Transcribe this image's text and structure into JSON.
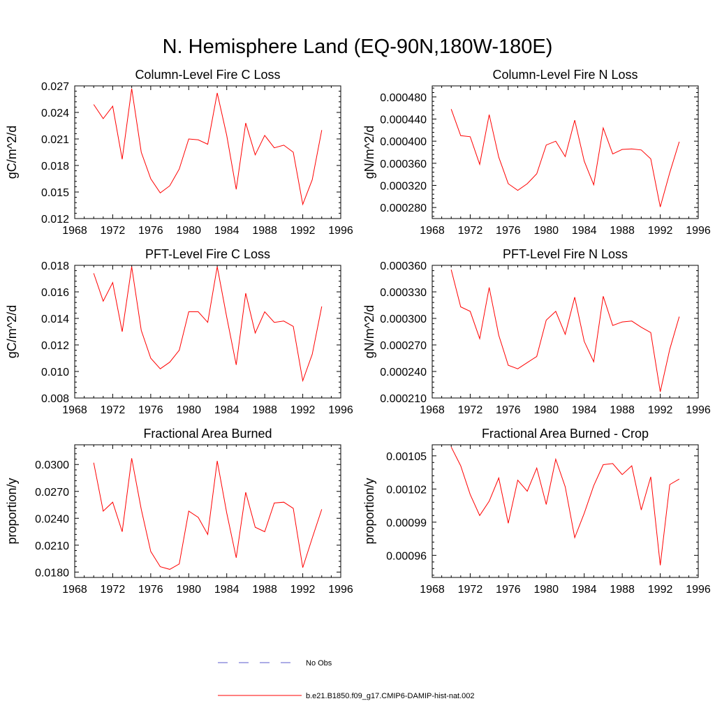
{
  "figure_title": "N. Hemisphere Land (EQ-90N,180W-180E)",
  "legend": {
    "obs_label": "No Obs",
    "obs_color": "#5a5acd",
    "model_label": "b.e21.B1850.f09_g17.CMIP6-DAMIP-hist-nat.002",
    "model_color": "#ff0000"
  },
  "chart_data": [
    {
      "type": "line",
      "title": "Column-Level Fire C Loss",
      "ylabel": "gC/m^2/d",
      "xlim": [
        1968,
        1996
      ],
      "ylim": [
        0.012,
        0.027
      ],
      "xticks": [
        1968,
        1972,
        1976,
        1980,
        1984,
        1988,
        1992,
        1996
      ],
      "yticks": [
        "0.012",
        "0.015",
        "0.018",
        "0.021",
        "0.024",
        "0.027"
      ],
      "series": [
        {
          "x": [
            1970,
            1971,
            1972,
            1973,
            1974,
            1975,
            1976,
            1977,
            1978,
            1979,
            1980,
            1981,
            1982,
            1983,
            1984,
            1985,
            1986,
            1987,
            1988,
            1989,
            1990,
            1991,
            1992,
            1993,
            1994
          ],
          "values": [
            0.0249,
            0.0233,
            0.0247,
            0.0187,
            0.0267,
            0.0195,
            0.0165,
            0.0149,
            0.0157,
            0.0176,
            0.021,
            0.0209,
            0.0204,
            0.0262,
            0.0214,
            0.0153,
            0.0228,
            0.0192,
            0.0214,
            0.02,
            0.0203,
            0.0195,
            0.0136,
            0.0164,
            0.022
          ],
          "color": "#ff0000"
        }
      ]
    },
    {
      "type": "line",
      "title": "Column-Level Fire N Loss",
      "ylabel": "gN/m^2/d",
      "xlim": [
        1968,
        1996
      ],
      "ylim": [
        0.00026,
        0.0005
      ],
      "xticks": [
        1968,
        1972,
        1976,
        1980,
        1984,
        1988,
        1992,
        1996
      ],
      "yticks": [
        "0.000280",
        "0.000320",
        "0.000360",
        "0.000400",
        "0.000440",
        "0.000480"
      ],
      "series": [
        {
          "x": [
            1970,
            1971,
            1972,
            1973,
            1974,
            1975,
            1976,
            1977,
            1978,
            1979,
            1980,
            1981,
            1982,
            1983,
            1984,
            1985,
            1986,
            1987,
            1988,
            1989,
            1990,
            1991,
            1992,
            1993,
            1994
          ],
          "values": [
            0.000458,
            0.00041,
            0.000408,
            0.000358,
            0.000448,
            0.000371,
            0.000323,
            0.000311,
            0.000323,
            0.000341,
            0.000393,
            0.0004,
            0.000372,
            0.000438,
            0.000364,
            0.000321,
            0.000424,
            0.000377,
            0.000385,
            0.000386,
            0.000384,
            0.000368,
            0.000281,
            0.000343,
            0.000399
          ],
          "color": "#ff0000"
        }
      ]
    },
    {
      "type": "line",
      "title": "PFT-Level Fire C Loss",
      "ylabel": "gC/m^2/d",
      "xlim": [
        1968,
        1996
      ],
      "ylim": [
        0.008,
        0.018
      ],
      "xticks": [
        1968,
        1972,
        1976,
        1980,
        1984,
        1988,
        1992,
        1996
      ],
      "yticks": [
        "0.008",
        "0.010",
        "0.012",
        "0.014",
        "0.016",
        "0.018"
      ],
      "series": [
        {
          "x": [
            1970,
            1971,
            1972,
            1973,
            1974,
            1975,
            1976,
            1977,
            1978,
            1979,
            1980,
            1981,
            1982,
            1983,
            1984,
            1985,
            1986,
            1987,
            1988,
            1989,
            1990,
            1991,
            1992,
            1993,
            1994
          ],
          "values": [
            0.0174,
            0.0153,
            0.0167,
            0.013,
            0.0179,
            0.0131,
            0.011,
            0.0102,
            0.0107,
            0.0116,
            0.0145,
            0.0145,
            0.0137,
            0.0179,
            0.0141,
            0.0105,
            0.0159,
            0.0129,
            0.0145,
            0.0137,
            0.0138,
            0.0134,
            0.0093,
            0.0113,
            0.0149
          ],
          "color": "#ff0000"
        }
      ]
    },
    {
      "type": "line",
      "title": "PFT-Level Fire N Loss",
      "ylabel": "gN/m^2/d",
      "xlim": [
        1968,
        1996
      ],
      "ylim": [
        0.00021,
        0.00036
      ],
      "xticks": [
        1968,
        1972,
        1976,
        1980,
        1984,
        1988,
        1992,
        1996
      ],
      "yticks": [
        "0.000210",
        "0.000240",
        "0.000270",
        "0.000300",
        "0.000330",
        "0.000360"
      ],
      "series": [
        {
          "x": [
            1970,
            1971,
            1972,
            1973,
            1974,
            1975,
            1976,
            1977,
            1978,
            1979,
            1980,
            1981,
            1982,
            1983,
            1984,
            1985,
            1986,
            1987,
            1988,
            1989,
            1990,
            1991,
            1992,
            1993,
            1994
          ],
          "values": [
            0.000355,
            0.000313,
            0.000308,
            0.000277,
            0.000335,
            0.000281,
            0.000247,
            0.000243,
            0.00025,
            0.000257,
            0.000298,
            0.000308,
            0.000282,
            0.000324,
            0.000274,
            0.000251,
            0.000325,
            0.000292,
            0.000296,
            0.000297,
            0.00029,
            0.000284,
            0.000217,
            0.000265,
            0.000302
          ],
          "color": "#ff0000"
        }
      ]
    },
    {
      "type": "line",
      "title": "Fractional Area Burned",
      "ylabel": "proportion/y",
      "xlim": [
        1968,
        1996
      ],
      "ylim": [
        0.0174,
        0.0322
      ],
      "xticks": [
        1968,
        1972,
        1976,
        1980,
        1984,
        1988,
        1992,
        1996
      ],
      "yticks": [
        "0.0180",
        "0.0210",
        "0.0240",
        "0.0270",
        "0.0300"
      ],
      "series": [
        {
          "x": [
            1970,
            1971,
            1972,
            1973,
            1974,
            1975,
            1976,
            1977,
            1978,
            1979,
            1980,
            1981,
            1982,
            1983,
            1984,
            1985,
            1986,
            1987,
            1988,
            1989,
            1990,
            1991,
            1992,
            1993,
            1994
          ],
          "values": [
            0.0302,
            0.0248,
            0.0258,
            0.0225,
            0.0307,
            0.025,
            0.0203,
            0.0186,
            0.0183,
            0.0189,
            0.0248,
            0.0241,
            0.0222,
            0.0304,
            0.0246,
            0.0196,
            0.0269,
            0.023,
            0.0225,
            0.0257,
            0.0258,
            0.0251,
            0.0185,
            0.0218,
            0.025
          ],
          "color": "#ff0000"
        }
      ]
    },
    {
      "type": "line",
      "title": "Fractional Area Burned - Crop",
      "ylabel": "proportion/y",
      "xlim": [
        1968,
        1996
      ],
      "ylim": [
        0.00094,
        0.00106
      ],
      "xticks": [
        1968,
        1972,
        1976,
        1980,
        1984,
        1988,
        1992,
        1996
      ],
      "yticks": [
        "0.00096",
        "0.00099",
        "0.00102",
        "0.00105"
      ],
      "series": [
        {
          "x": [
            1970,
            1971,
            1972,
            1973,
            1974,
            1975,
            1976,
            1977,
            1978,
            1979,
            1980,
            1981,
            1982,
            1983,
            1984,
            1985,
            1986,
            1987,
            1988,
            1989,
            1990,
            1991,
            1992,
            1993,
            1994
          ],
          "values": [
            0.001058,
            0.001041,
            0.001015,
            0.000996,
            0.001009,
            0.00103,
            0.000989,
            0.001028,
            0.001018,
            0.001039,
            0.001006,
            0.001047,
            0.001022,
            0.000976,
            0.000998,
            0.001023,
            0.001042,
            0.001043,
            0.001033,
            0.001041,
            0.001001,
            0.001031,
            0.000951,
            0.001024,
            0.001029
          ],
          "color": "#ff0000"
        }
      ]
    }
  ]
}
